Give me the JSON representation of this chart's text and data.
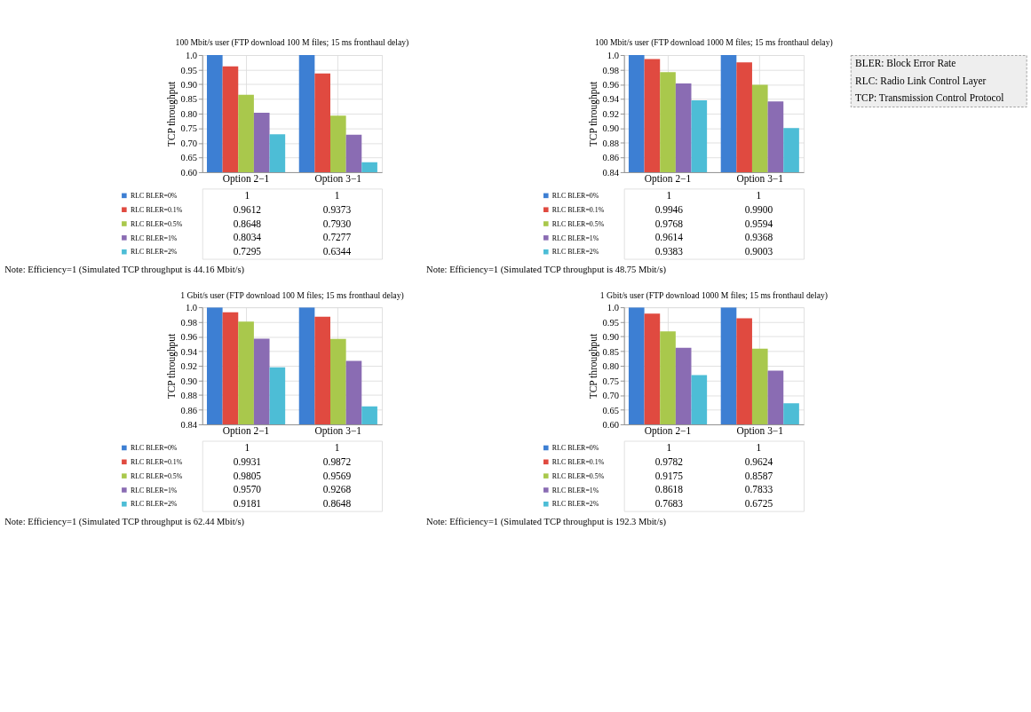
{
  "chart_data": [
    {
      "type": "bar",
      "title": "100 Mbit/s user (FTP download 100 M files; 15 ms fronthaul delay)",
      "ylabel": "TCP throughput",
      "categories": [
        "Option 2−1",
        "Option 3−1"
      ],
      "series": [
        {
          "name": "RLC BLER=0%",
          "color": "#3d7fd3",
          "values": [
            1,
            1
          ],
          "value_labels": [
            "1",
            "1"
          ]
        },
        {
          "name": "RLC BLER=0.1%",
          "color": "#e04a40",
          "values": [
            0.9612,
            0.9373
          ],
          "value_labels": [
            "0.9612",
            "0.9373"
          ]
        },
        {
          "name": "RLC BLER=0.5%",
          "color": "#a9c84c",
          "values": [
            0.8648,
            0.793
          ],
          "value_labels": [
            "0.8648",
            "0.7930"
          ]
        },
        {
          "name": "RLC BLER=1%",
          "color": "#8a6cb3",
          "values": [
            0.8034,
            0.7277
          ],
          "value_labels": [
            "0.8034",
            "0.7277"
          ]
        },
        {
          "name": "RLC BLER=2%",
          "color": "#4dbdd6",
          "values": [
            0.7295,
            0.6344
          ],
          "value_labels": [
            "0.7295",
            "0.6344"
          ]
        }
      ],
      "ylim": [
        0.6,
        1.0
      ],
      "yticks": [
        {
          "value": 0.6,
          "label": "0.60"
        },
        {
          "value": 0.65,
          "label": "0.65"
        },
        {
          "value": 0.7,
          "label": "0.70"
        },
        {
          "value": 0.75,
          "label": "0.75"
        },
        {
          "value": 0.8,
          "label": "0.80"
        },
        {
          "value": 0.85,
          "label": "0.85"
        },
        {
          "value": 0.9,
          "label": "0.90"
        },
        {
          "value": 0.95,
          "label": "0.95"
        },
        {
          "value": 1.0,
          "label": "1.0"
        }
      ],
      "grid": true,
      "legend": "bottom left",
      "annotations": [
        "Note: Efficiency=1 (Simulated TCP throughput is 44.16 Mbit/s)"
      ]
    },
    {
      "type": "bar",
      "title": "100 Mbit/s user (FTP download 1000 M files; 15 ms fronthaul delay)",
      "ylabel": "TCP throughput",
      "categories": [
        "Option 2−1",
        "Option 3−1"
      ],
      "series": [
        {
          "name": "RLC BLER=0%",
          "color": "#3d7fd3",
          "values": [
            1,
            1
          ],
          "value_labels": [
            "1",
            "1"
          ]
        },
        {
          "name": "RLC BLER=0.1%",
          "color": "#e04a40",
          "values": [
            0.9946,
            0.99
          ],
          "value_labels": [
            "0.9946",
            "0.9900"
          ]
        },
        {
          "name": "RLC BLER=0.5%",
          "color": "#a9c84c",
          "values": [
            0.9768,
            0.9594
          ],
          "value_labels": [
            "0.9768",
            "0.9594"
          ]
        },
        {
          "name": "RLC BLER=1%",
          "color": "#8a6cb3",
          "values": [
            0.9614,
            0.9368
          ],
          "value_labels": [
            "0.9614",
            "0.9368"
          ]
        },
        {
          "name": "RLC BLER=2%",
          "color": "#4dbdd6",
          "values": [
            0.9383,
            0.9003
          ],
          "value_labels": [
            "0.9383",
            "0.9003"
          ]
        }
      ],
      "ylim": [
        0.84,
        1.0
      ],
      "yticks": [
        0.84,
        0.86,
        0.88,
        {
          "value": 0.9,
          "label": "0.90"
        },
        0.92,
        0.94,
        0.96,
        0.98,
        {
          "value": 1.0,
          "label": "1.0"
        }
      ],
      "grid": true,
      "legend": "bottom left",
      "annotations": [
        "Note: Efficiency=1 (Simulated TCP throughput is 48.75 Mbit/s)"
      ]
    },
    {
      "type": "other",
      "annotations": [
        "BLER: Block Error Rate",
        "RLC: Radio Link Control Layer",
        "TCP: Transmission Control Protocol"
      ]
    },
    {
      "type": "bar",
      "title": "1 Gbit/s user (FTP download 100 M files; 15 ms fronthaul delay)",
      "ylabel": "TCP throughput",
      "categories": [
        "Option 2−1",
        "Option 3−1"
      ],
      "series": [
        {
          "name": "RLC BLER=0%",
          "color": "#3d7fd3",
          "values": [
            1,
            1
          ],
          "value_labels": [
            "1",
            "1"
          ]
        },
        {
          "name": "RLC BLER=0.1%",
          "color": "#e04a40",
          "values": [
            0.9931,
            0.9872
          ],
          "value_labels": [
            "0.9931",
            "0.9872"
          ]
        },
        {
          "name": "RLC BLER=0.5%",
          "color": "#a9c84c",
          "values": [
            0.9805,
            0.9569
          ],
          "value_labels": [
            "0.9805",
            "0.9569"
          ]
        },
        {
          "name": "RLC BLER=1%",
          "color": "#8a6cb3",
          "values": [
            0.957,
            0.9268
          ],
          "value_labels": [
            "0.9570",
            "0.9268"
          ]
        },
        {
          "name": "RLC BLER=2%",
          "color": "#4dbdd6",
          "values": [
            0.9181,
            0.8648
          ],
          "value_labels": [
            "0.9181",
            "0.8648"
          ]
        }
      ],
      "ylim": [
        0.84,
        1.0
      ],
      "yticks": [
        0.84,
        0.86,
        0.88,
        {
          "value": 0.9,
          "label": "0.90"
        },
        0.92,
        0.94,
        0.96,
        0.98,
        {
          "value": 1.0,
          "label": "1.0"
        }
      ],
      "grid": true,
      "legend": "bottom left",
      "annotations": [
        "Note: Efficiency=1 (Simulated TCP throughput is 62.44 Mbit/s)"
      ]
    },
    {
      "type": "bar",
      "title": "1 Gbit/s user (FTP download 1000 M files; 15 ms fronthaul delay)",
      "ylabel": "TCP throughput",
      "categories": [
        "Option 2−1",
        "Option 3−1"
      ],
      "series": [
        {
          "name": "RLC BLER=0%",
          "color": "#3d7fd3",
          "values": [
            1,
            1
          ],
          "value_labels": [
            "1",
            "1"
          ]
        },
        {
          "name": "RLC BLER=0.1%",
          "color": "#e04a40",
          "values": [
            0.9782,
            0.9624
          ],
          "value_labels": [
            "0.9782",
            "0.9624"
          ]
        },
        {
          "name": "RLC BLER=0.5%",
          "color": "#a9c84c",
          "values": [
            0.9175,
            0.8587
          ],
          "value_labels": [
            "0.9175",
            "0.8587"
          ]
        },
        {
          "name": "RLC BLER=1%",
          "color": "#8a6cb3",
          "values": [
            0.8618,
            0.7833
          ],
          "value_labels": [
            "0.8618",
            "0.7833"
          ]
        },
        {
          "name": "RLC BLER=2%",
          "color": "#4dbdd6",
          "values": [
            0.7683,
            0.6725
          ],
          "value_labels": [
            "0.7683",
            "0.6725"
          ]
        }
      ],
      "ylim": [
        0.6,
        1.0
      ],
      "yticks": [
        {
          "value": 0.6,
          "label": "0.60"
        },
        {
          "value": 0.65,
          "label": "0.65"
        },
        {
          "value": 0.7,
          "label": "0.70"
        },
        {
          "value": 0.75,
          "label": "0.75"
        },
        {
          "value": 0.8,
          "label": "0.80"
        },
        {
          "value": 0.85,
          "label": "0.85"
        },
        {
          "value": 0.9,
          "label": "0.90"
        },
        {
          "value": 0.95,
          "label": "0.95"
        },
        {
          "value": 1.0,
          "label": "1.0"
        }
      ],
      "grid": true,
      "legend": "bottom left",
      "annotations": [
        "Note: Efficiency=1 (Simulated TCP throughput is 192.3 Mbit/s)"
      ]
    }
  ]
}
